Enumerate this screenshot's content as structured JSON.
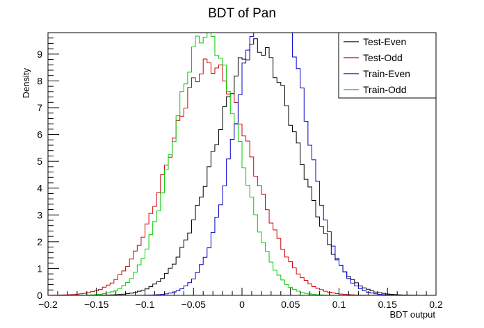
{
  "chart_data": {
    "type": "histogram-step",
    "title": "BDT of Pan",
    "xlabel": "BDT output",
    "ylabel": "Density",
    "xlim": [
      -0.2,
      0.2
    ],
    "ylim": [
      0,
      9.8
    ],
    "grid": false,
    "legend_position": "top-right",
    "x_ticks": [
      -0.2,
      -0.15,
      -0.1,
      -0.05,
      0,
      0.05,
      0.1,
      0.15,
      0.2
    ],
    "x_tick_labels": [
      "−0.2",
      "−0.15",
      "−0.1",
      "−0.05",
      "0",
      "0.05",
      "0.1",
      "0.15",
      "0.2"
    ],
    "y_ticks": [
      0,
      1,
      2,
      3,
      4,
      5,
      6,
      7,
      8,
      9
    ],
    "y_tick_labels": [
      "0",
      "1",
      "2",
      "3",
      "4",
      "5",
      "6",
      "7",
      "8",
      "9"
    ],
    "bin_range": [
      -0.2,
      0.2
    ],
    "bin_count": 100,
    "series": [
      {
        "name": "Test-Even",
        "color": "#000000",
        "mean": 0.015,
        "sigma": 0.042,
        "peak": 9.3
      },
      {
        "name": "Test-Odd",
        "color": "#cc0000",
        "mean": -0.033,
        "sigma": 0.042,
        "peak": 8.6
      },
      {
        "name": "Train-Even",
        "color": "#0000cc",
        "mean": 0.03,
        "sigma": 0.033,
        "peak": 12.0
      },
      {
        "name": "Train-Odd",
        "color": "#00cc00",
        "mean": -0.037,
        "sigma": 0.033,
        "peak": 9.8
      }
    ]
  }
}
